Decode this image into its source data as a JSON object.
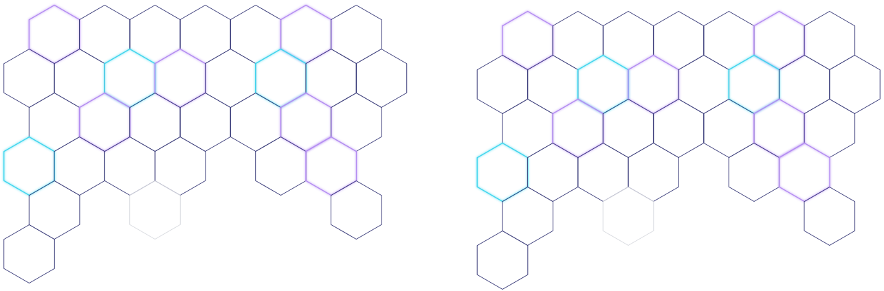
{
  "colors": {
    "default": "#3b3d7a",
    "violet": "#b48cf2",
    "cyan": "#3fd6ee",
    "faint": "#d9dbe0"
  },
  "clusters": [
    {
      "name": "left-cluster",
      "cells": [
        {
          "col": 1,
          "row": 0,
          "state": "violet"
        },
        {
          "col": 3,
          "row": 0,
          "state": "default"
        },
        {
          "col": 5,
          "row": 0,
          "state": "default"
        },
        {
          "col": 7,
          "row": 0,
          "state": "default"
        },
        {
          "col": 9,
          "row": 0,
          "state": "default"
        },
        {
          "col": 11,
          "row": 0,
          "state": "violet"
        },
        {
          "col": 13,
          "row": 0,
          "state": "default"
        },
        {
          "col": 0,
          "row": 1,
          "state": "default"
        },
        {
          "col": 2,
          "row": 1,
          "state": "default"
        },
        {
          "col": 4,
          "row": 1,
          "state": "cyan"
        },
        {
          "col": 6,
          "row": 1,
          "state": "violet"
        },
        {
          "col": 8,
          "row": 1,
          "state": "default"
        },
        {
          "col": 10,
          "row": 1,
          "state": "cyan"
        },
        {
          "col": 12,
          "row": 1,
          "state": "default"
        },
        {
          "col": 14,
          "row": 1,
          "state": "default"
        },
        {
          "col": 1,
          "row": 2,
          "state": "default"
        },
        {
          "col": 3,
          "row": 2,
          "state": "violet"
        },
        {
          "col": 5,
          "row": 2,
          "state": "default"
        },
        {
          "col": 7,
          "row": 2,
          "state": "default"
        },
        {
          "col": 9,
          "row": 2,
          "state": "default"
        },
        {
          "col": 11,
          "row": 2,
          "state": "violet"
        },
        {
          "col": 13,
          "row": 2,
          "state": "default"
        },
        {
          "col": 0,
          "row": 3,
          "state": "cyan"
        },
        {
          "col": 2,
          "row": 3,
          "state": "default"
        },
        {
          "col": 4,
          "row": 3,
          "state": "default"
        },
        {
          "col": 6,
          "row": 3,
          "state": "default"
        },
        {
          "col": 10,
          "row": 3,
          "state": "default"
        },
        {
          "col": 12,
          "row": 3,
          "state": "violet"
        },
        {
          "col": 1,
          "row": 4,
          "state": "default"
        },
        {
          "col": 5,
          "row": 4,
          "state": "faint"
        },
        {
          "col": 13,
          "row": 4,
          "state": "default"
        },
        {
          "col": 0,
          "row": 5,
          "state": "default"
        }
      ]
    },
    {
      "name": "right-cluster",
      "cells": [
        {
          "col": 1,
          "row": 0,
          "state": "violet"
        },
        {
          "col": 3,
          "row": 0,
          "state": "default"
        },
        {
          "col": 5,
          "row": 0,
          "state": "default"
        },
        {
          "col": 7,
          "row": 0,
          "state": "default"
        },
        {
          "col": 9,
          "row": 0,
          "state": "default"
        },
        {
          "col": 11,
          "row": 0,
          "state": "violet"
        },
        {
          "col": 13,
          "row": 0,
          "state": "default"
        },
        {
          "col": 0,
          "row": 1,
          "state": "default"
        },
        {
          "col": 2,
          "row": 1,
          "state": "default"
        },
        {
          "col": 4,
          "row": 1,
          "state": "cyan"
        },
        {
          "col": 6,
          "row": 1,
          "state": "violet"
        },
        {
          "col": 8,
          "row": 1,
          "state": "default"
        },
        {
          "col": 10,
          "row": 1,
          "state": "cyan"
        },
        {
          "col": 12,
          "row": 1,
          "state": "default"
        },
        {
          "col": 14,
          "row": 1,
          "state": "default"
        },
        {
          "col": 1,
          "row": 2,
          "state": "default"
        },
        {
          "col": 3,
          "row": 2,
          "state": "violet"
        },
        {
          "col": 5,
          "row": 2,
          "state": "default"
        },
        {
          "col": 7,
          "row": 2,
          "state": "default"
        },
        {
          "col": 9,
          "row": 2,
          "state": "default"
        },
        {
          "col": 11,
          "row": 2,
          "state": "violet"
        },
        {
          "col": 13,
          "row": 2,
          "state": "default"
        },
        {
          "col": 0,
          "row": 3,
          "state": "cyan"
        },
        {
          "col": 2,
          "row": 3,
          "state": "default"
        },
        {
          "col": 4,
          "row": 3,
          "state": "default"
        },
        {
          "col": 6,
          "row": 3,
          "state": "default"
        },
        {
          "col": 10,
          "row": 3,
          "state": "default"
        },
        {
          "col": 12,
          "row": 3,
          "state": "violet"
        },
        {
          "col": 1,
          "row": 4,
          "state": "default"
        },
        {
          "col": 5,
          "row": 4,
          "state": "faint"
        },
        {
          "col": 13,
          "row": 4,
          "state": "default"
        },
        {
          "col": 0,
          "row": 5,
          "state": "default"
        }
      ]
    }
  ]
}
